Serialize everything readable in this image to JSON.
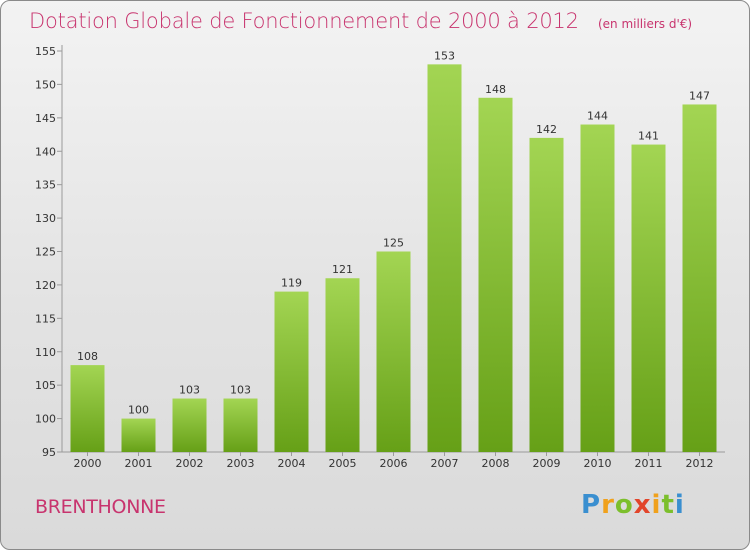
{
  "title": "Dotation Globale de Fonctionnement de 2000 à 2012",
  "unit": "(en milliers d'€)",
  "commune": "BRENTHONNE",
  "logo": {
    "text": "Proxiti"
  },
  "colors": {
    "accent": "#c8346e",
    "bar_top": "#9fd24c",
    "bar_bottom": "#6aa31a"
  },
  "chart_data": {
    "type": "bar",
    "categories": [
      "2000",
      "2001",
      "2002",
      "2003",
      "2004",
      "2005",
      "2006",
      "2007",
      "2008",
      "2009",
      "2010",
      "2011",
      "2012"
    ],
    "values": [
      108,
      100,
      103,
      103,
      119,
      121,
      125,
      153,
      148,
      142,
      144,
      141,
      147
    ],
    "ylim": [
      95,
      155
    ],
    "yticks": [
      95,
      100,
      105,
      110,
      115,
      120,
      125,
      130,
      135,
      140,
      145,
      150,
      155
    ],
    "grid": false
  }
}
